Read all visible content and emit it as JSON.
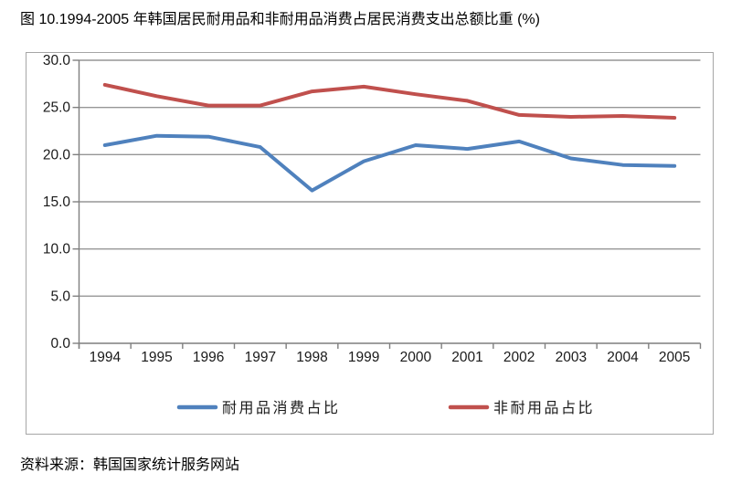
{
  "title": "图 10.1994-2005 年韩国居民耐用品和非耐用品消费占居民消费支出总额比重 (%)",
  "source": "资料来源：韩国国家统计服务网站",
  "colors": {
    "durables_line": "#4F81BD",
    "nondurables_line": "#C0504D",
    "gridline": "#969696",
    "axis": "#7f7f7f",
    "tick_label": "#1a1a1a",
    "box_border": "#a6a6a6"
  },
  "chart_data": {
    "type": "line",
    "title": "",
    "xlabel": "",
    "ylabel": "",
    "categories": [
      "1994",
      "1995",
      "1996",
      "1997",
      "1998",
      "1999",
      "2000",
      "2001",
      "2002",
      "2003",
      "2004",
      "2005"
    ],
    "series": [
      {
        "name": "耐用品消费占比",
        "color": "#4F81BD",
        "values": [
          21.0,
          22.0,
          21.9,
          20.8,
          16.2,
          19.3,
          21.0,
          20.6,
          21.4,
          19.6,
          18.9,
          18.8
        ]
      },
      {
        "name": "非耐用品占比",
        "color": "#C0504D",
        "values": [
          27.4,
          26.2,
          25.2,
          25.2,
          26.7,
          27.2,
          26.4,
          25.7,
          24.2,
          24.0,
          24.1,
          23.9
        ]
      }
    ],
    "ylim": [
      0,
      30
    ],
    "ytick_step": 5,
    "ytick_labels": [
      "0.0",
      "5.0",
      "10.0",
      "15.0",
      "20.0",
      "25.0",
      "30.0"
    ],
    "grid": true,
    "legend_position": "bottom"
  }
}
